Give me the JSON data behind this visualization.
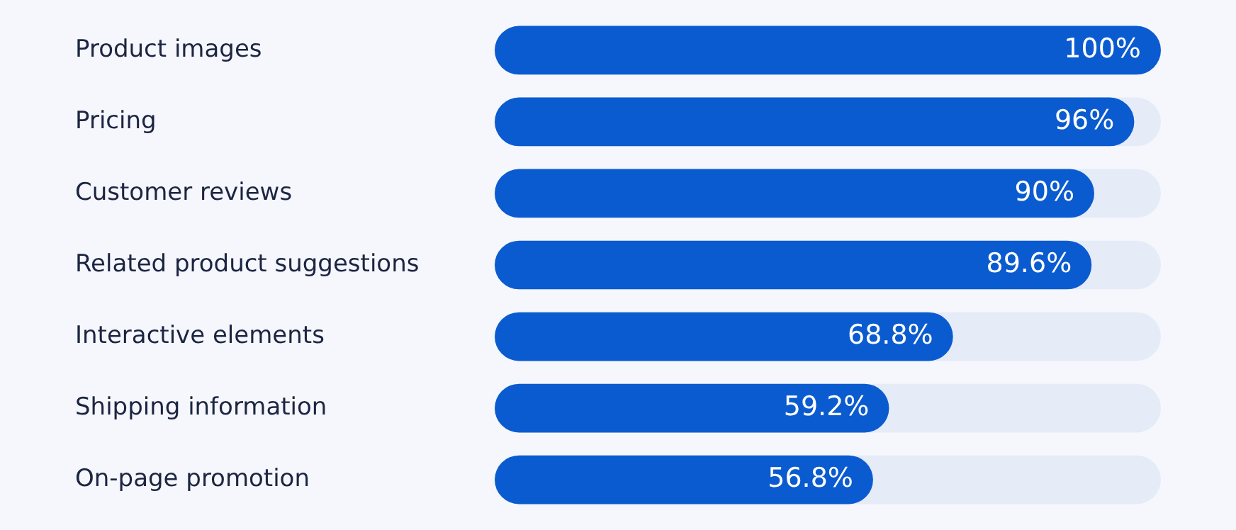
{
  "chart_data": {
    "type": "bar",
    "orientation": "horizontal",
    "categories": [
      "Product images",
      "Pricing",
      "Customer reviews",
      "Related product suggestions",
      "Interactive elements",
      "Shipping information",
      "On-page promotion"
    ],
    "values": [
      100,
      96,
      90,
      89.6,
      68.8,
      59.2,
      56.8
    ],
    "value_labels": [
      "100%",
      "96%",
      "90%",
      "89.6%",
      "68.8%",
      "59.2%",
      "56.8%"
    ],
    "color": "#0b5bd0",
    "xlim": [
      0,
      100
    ],
    "tick_labels": "y",
    "legend": false
  }
}
